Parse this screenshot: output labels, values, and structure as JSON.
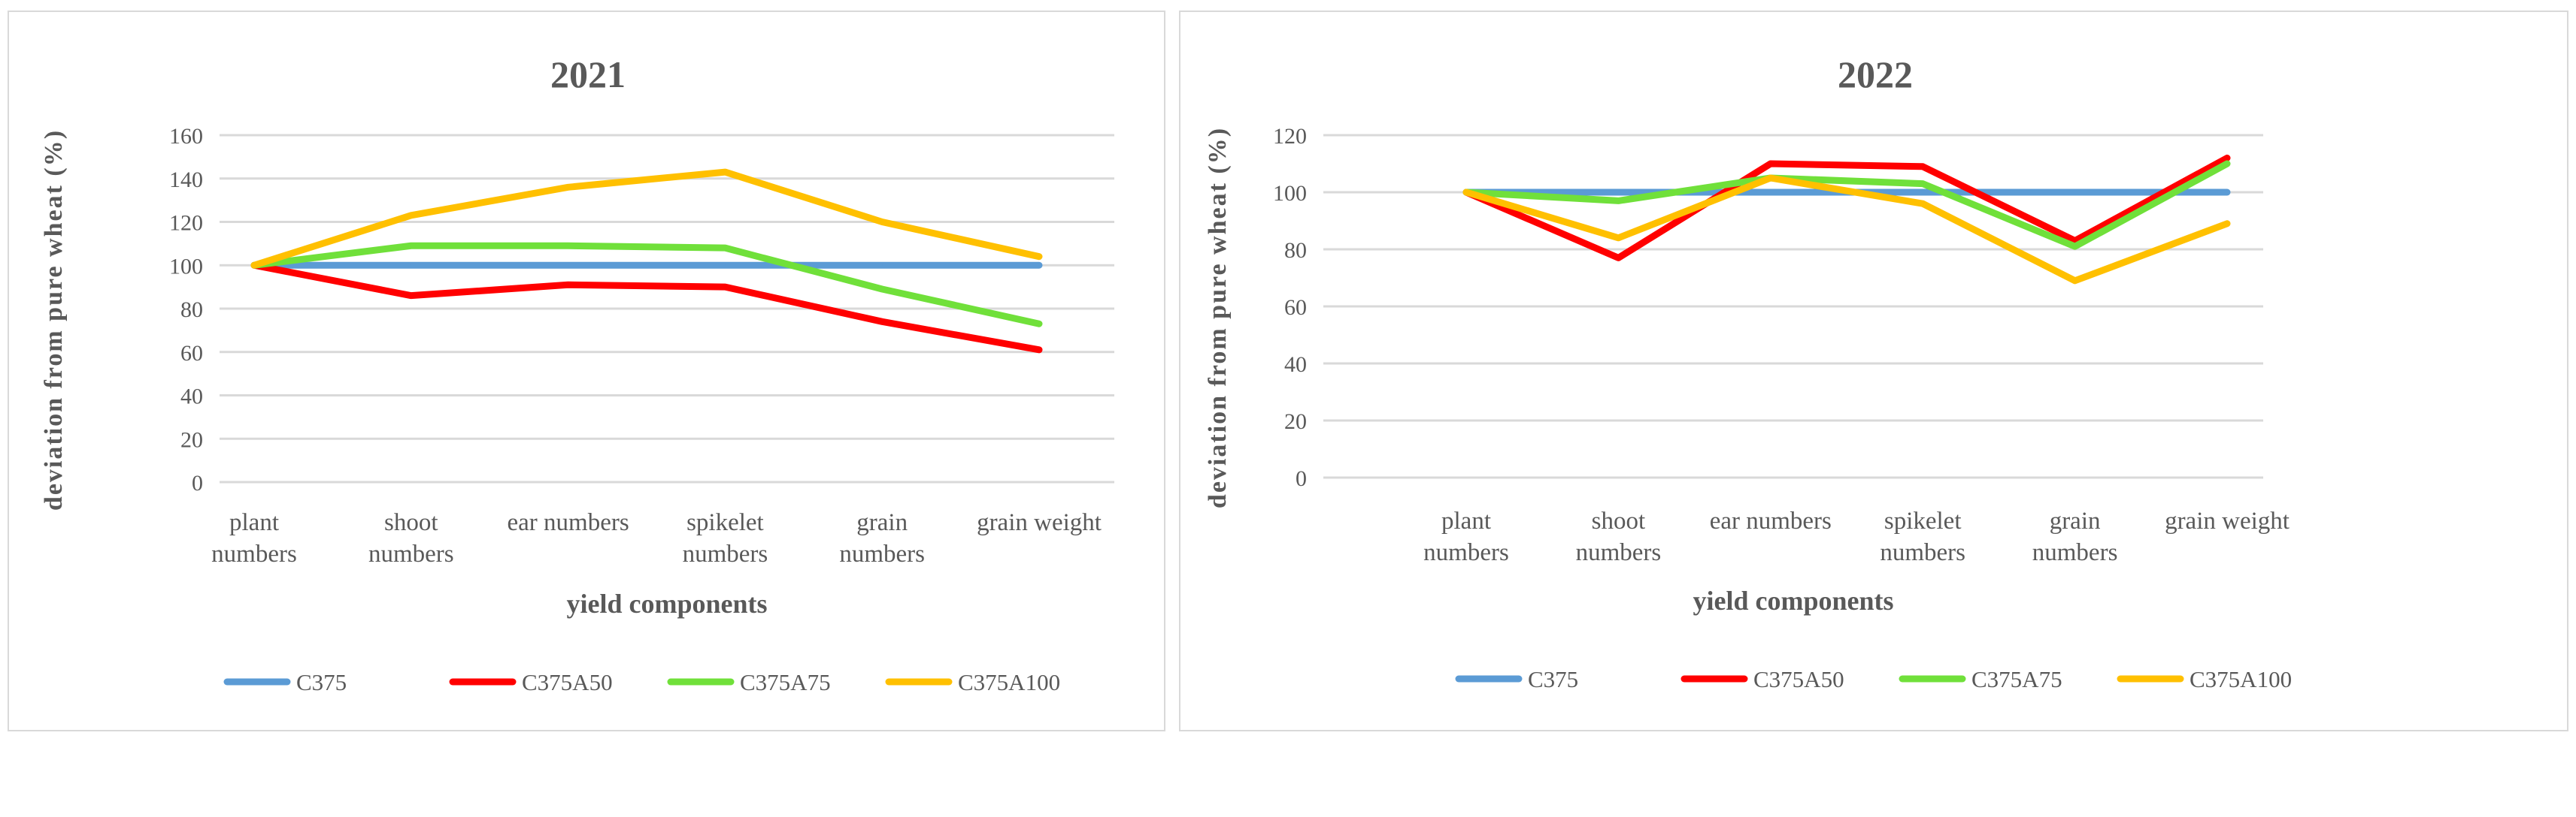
{
  "chart_data": [
    {
      "type": "line",
      "title": "2021",
      "xlabel": "yield components",
      "ylabel": "deviation from pure wheat (%)",
      "categories": [
        [
          "plant",
          "numbers"
        ],
        [
          "shoot",
          "numbers"
        ],
        [
          "ear numbers"
        ],
        [
          "spikelet",
          "numbers"
        ],
        [
          "grain",
          "numbers"
        ],
        [
          "grain weight"
        ]
      ],
      "yticks": [
        "0",
        "20",
        "40",
        "60",
        "80",
        "100",
        "120",
        "140",
        "160"
      ],
      "ylim": [
        0,
        160
      ],
      "grid": true,
      "legend": "bottom",
      "series": [
        {
          "name": "C375",
          "color": "#5b9bd5",
          "values": [
            100,
            100,
            100,
            100,
            100,
            100
          ]
        },
        {
          "name": "C375A50",
          "color": "#ff0000",
          "values": [
            100,
            86,
            91,
            90,
            74,
            61
          ]
        },
        {
          "name": "C375A75",
          "color": "#70e03a",
          "values": [
            100,
            109,
            109,
            108,
            89,
            73
          ]
        },
        {
          "name": "C375A100",
          "color": "#ffc000",
          "values": [
            100,
            123,
            136,
            143,
            120,
            104
          ]
        }
      ]
    },
    {
      "type": "line",
      "title": "2022",
      "xlabel": "yield components",
      "ylabel": "deviation from pure wheat (%)",
      "categories": [
        [
          "plant",
          "numbers"
        ],
        [
          "shoot",
          "numbers"
        ],
        [
          "ear numbers"
        ],
        [
          "spikelet",
          "numbers"
        ],
        [
          "grain",
          "numbers"
        ],
        [
          "grain weight"
        ]
      ],
      "yticks": [
        "0",
        "20",
        "40",
        "60",
        "80",
        "100",
        "120"
      ],
      "ylim": [
        0,
        120
      ],
      "grid": true,
      "legend": "bottom",
      "series": [
        {
          "name": "C375",
          "color": "#5b9bd5",
          "values": [
            100,
            100,
            100,
            100,
            100,
            100
          ]
        },
        {
          "name": "C375A50",
          "color": "#ff0000",
          "values": [
            100,
            77,
            110,
            109,
            83,
            112
          ]
        },
        {
          "name": "C375A75",
          "color": "#70e03a",
          "values": [
            100,
            97,
            105,
            103,
            81,
            110
          ]
        },
        {
          "name": "C375A100",
          "color": "#ffc000",
          "values": [
            100,
            84,
            105,
            96,
            69,
            89
          ]
        }
      ]
    }
  ]
}
